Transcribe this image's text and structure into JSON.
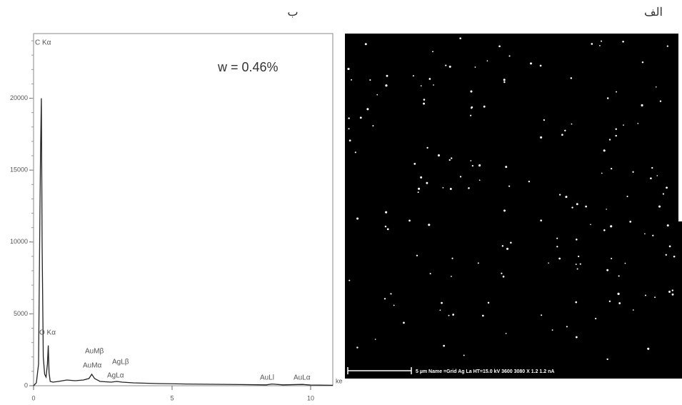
{
  "chart_data": {
    "type": "line",
    "annotation": "w = 0.46%",
    "peak_labels": [
      "C Kα",
      "O Kα",
      "AuMβ",
      "AuMα",
      "AgLβ",
      "AgLα",
      "AuLl",
      "AuLα"
    ],
    "x_unit": "ke",
    "x": [
      0,
      0.1,
      0.18,
      0.22,
      0.25,
      0.28,
      0.31,
      0.35,
      0.4,
      0.45,
      0.5,
      0.53,
      0.56,
      0.6,
      0.7,
      0.9,
      1.2,
      1.5,
      1.8,
      2.0,
      2.1,
      2.2,
      2.4,
      2.8,
      3.0,
      3.2,
      3.6,
      4.5,
      5.5,
      6.5,
      7.5,
      8.4,
      8.6,
      9.0,
      9.7,
      10.0,
      10.8
    ],
    "series": [
      {
        "color": "#222222",
        "values": [
          0,
          200,
          1500,
          9800,
          16000,
          20000,
          9800,
          2000,
          800,
          600,
          1500,
          2800,
          900,
          300,
          250,
          300,
          400,
          350,
          400,
          500,
          800,
          500,
          300,
          250,
          300,
          250,
          200,
          150,
          120,
          100,
          80,
          60,
          120,
          60,
          90,
          50,
          30
        ]
      }
    ],
    "xlim": [
      0,
      10.8
    ],
    "xticks": [
      0,
      5,
      10
    ],
    "ylim": [
      0,
      24500
    ],
    "yticks": [
      0,
      5000,
      10000,
      15000,
      20000
    ]
  },
  "panels": {
    "left_label": "ب",
    "right_label": "الف"
  },
  "image": {
    "caption": "5 µm   Name =Grid Ag La   HT=15.0 kV   3600 3080 X   1.2 1.2 nA"
  }
}
